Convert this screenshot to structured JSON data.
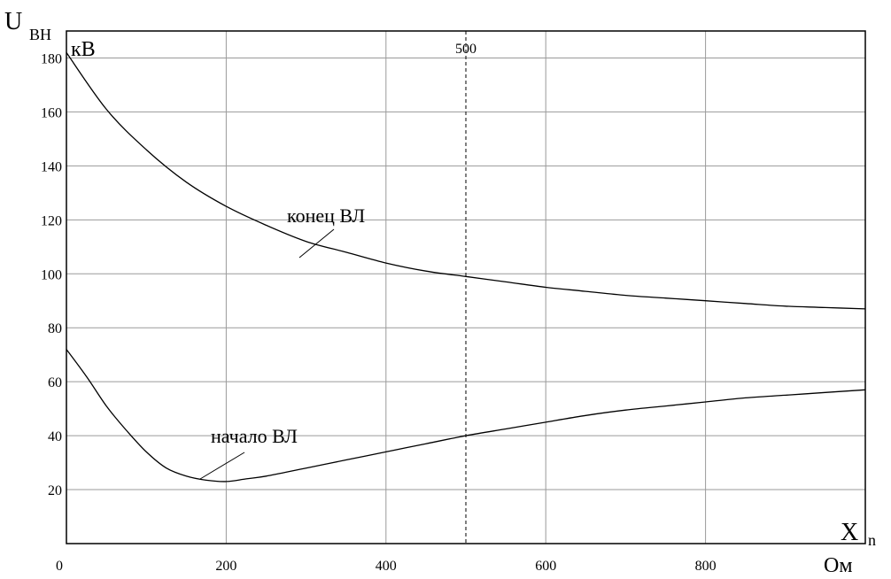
{
  "chart_data": {
    "type": "line",
    "y_title_main": "U",
    "y_title_sub": "ВН",
    "y_unit": "кВ",
    "x_title_main": "X",
    "x_title_sub": "n",
    "x_unit": "Ом",
    "xlim": [
      0,
      1000
    ],
    "ylim": [
      0,
      190
    ],
    "x_ticks": [
      0,
      200,
      400,
      600,
      800
    ],
    "y_ticks": [
      20,
      40,
      60,
      80,
      100,
      120,
      140,
      160,
      180
    ],
    "grid": true,
    "reference_line": {
      "x": 500,
      "label": "500"
    },
    "series": [
      {
        "name": "конец ВЛ",
        "x": [
          0,
          50,
          100,
          150,
          200,
          250,
          300,
          350,
          400,
          450,
          500,
          550,
          600,
          650,
          700,
          750,
          800,
          850,
          900,
          950,
          1000
        ],
        "y": [
          182,
          161,
          146,
          134,
          125,
          118,
          112,
          108,
          104,
          101,
          99,
          97,
          95,
          93.5,
          92,
          91,
          90,
          89,
          88,
          87.5,
          87
        ]
      },
      {
        "name": "начало ВЛ",
        "x": [
          0,
          25,
          50,
          75,
          100,
          125,
          150,
          175,
          200,
          225,
          250,
          300,
          350,
          400,
          450,
          500,
          550,
          600,
          650,
          700,
          750,
          800,
          850,
          900,
          950,
          1000
        ],
        "y": [
          72,
          62,
          51,
          42,
          34,
          28,
          25,
          23.5,
          23,
          24,
          25,
          28,
          31,
          34,
          37,
          40,
          42.5,
          45,
          47.5,
          49.5,
          51,
          52.5,
          54,
          55,
          56,
          57
        ]
      }
    ]
  }
}
